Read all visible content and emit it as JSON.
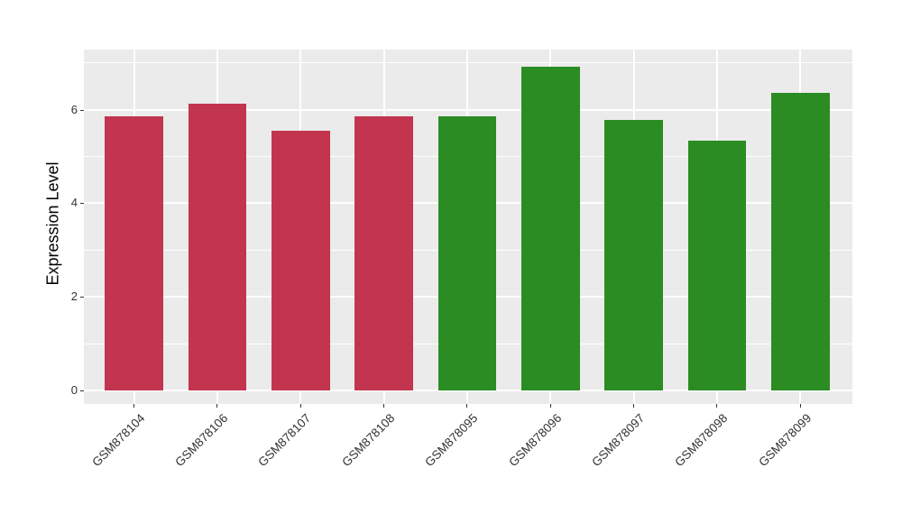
{
  "chart_data": {
    "type": "bar",
    "title": "",
    "xlabel": "",
    "ylabel": "Expression Level",
    "categories": [
      "GSM878104",
      "GSM878106",
      "GSM878107",
      "GSM878108",
      "GSM878095",
      "GSM878096",
      "GSM878097",
      "GSM878098",
      "GSM878099"
    ],
    "values": [
      5.85,
      6.12,
      5.55,
      5.86,
      5.85,
      6.91,
      5.78,
      5.33,
      6.35
    ],
    "bar_groups": [
      "red",
      "red",
      "red",
      "red",
      "green",
      "green",
      "green",
      "green",
      "green"
    ],
    "group_colors": {
      "red": "#C3344F",
      "green": "#2A8C22"
    },
    "yticks": [
      0,
      2,
      4,
      6
    ],
    "ytick_labels": [
      "0",
      "2",
      "4",
      "6"
    ],
    "minor_yticks": [
      1,
      3,
      5,
      7
    ],
    "ylim": [
      -0.29,
      7.29
    ],
    "grid": "on",
    "legend": "none",
    "panel_background": "#EBEBEB",
    "grid_color": "#FFFFFF",
    "axis_text_color": "#333333",
    "axis_title_color": "#000000",
    "tick_mark_color": "#333333"
  }
}
